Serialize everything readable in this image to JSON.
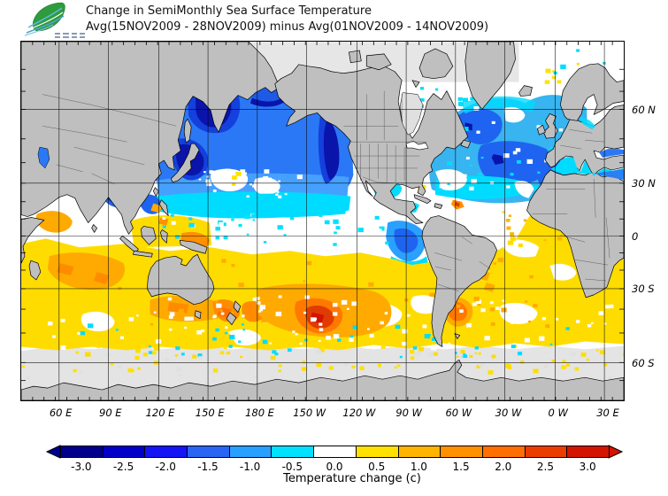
{
  "header": {
    "title_line1": "Change in SemiMonthly Sea Surface Temperature",
    "title_line2": "Avg(15NOV2009 - 28NOV2009) minus Avg(01NOV2009 - 14NOV2009)"
  },
  "map_axes": {
    "lat_labels": [
      "60 N",
      "30 N",
      "0",
      "30 S",
      "60 S"
    ],
    "lon_labels": [
      "60 E",
      "90 E",
      "120 E",
      "150 E",
      "180 E",
      "150 W",
      "120 W",
      "90 W",
      "60 W",
      "30 W",
      "0 W",
      "30 E"
    ]
  },
  "colorbar": {
    "tick_labels": [
      "-3.0",
      "-2.5",
      "-2.0",
      "-1.5",
      "-1.0",
      "-0.5",
      "0.0",
      "0.5",
      "1.0",
      "1.5",
      "2.0",
      "2.5",
      "3.0"
    ],
    "segment_colors": [
      "#00008C",
      "#0000C8",
      "#1414F5",
      "#2A64F5",
      "#28A0FF",
      "#00E1FF",
      "#FFFFFF",
      "#FFE100",
      "#FFB400",
      "#FF9100",
      "#FF6E00",
      "#EB3C00",
      "#D21400"
    ],
    "left_arrow_color": "#00008C",
    "right_arrow_color": "#D21400",
    "caption": "Temperature change  (c)"
  },
  "map_colors": {
    "land": "#BFBFBF",
    "no_data": "#E4E4E4",
    "strong_cooling": "#0A14AA",
    "cooling": "#1E64F0",
    "mild_cooling": "#00DCFF",
    "neutral": "#FFFFFF",
    "mild_warming": "#FFDC00",
    "warming": "#FFAA00",
    "strong_warming": "#E13C00"
  }
}
